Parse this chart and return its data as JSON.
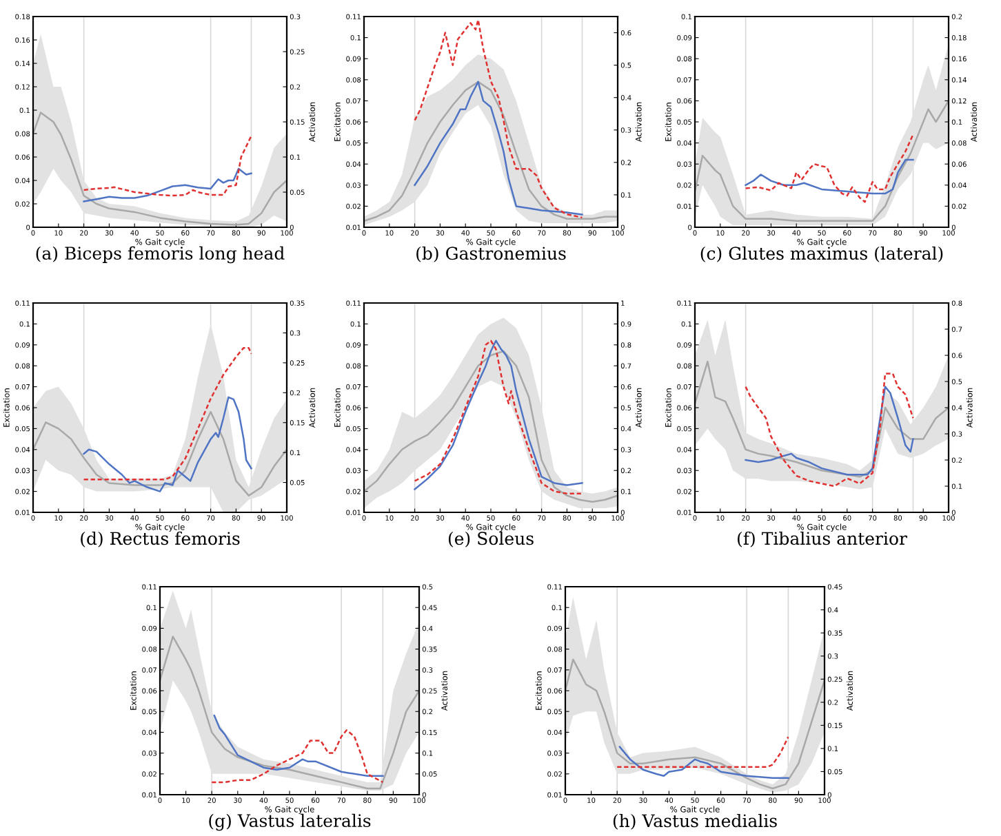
{
  "chart_data": [
    {
      "type": "line",
      "title": "(a) Biceps femoris long head",
      "xlabel": "% Gait cycle",
      "y2label": "Activation",
      "xlim": [
        0,
        100
      ],
      "xticks": [
        0,
        10,
        20,
        30,
        40,
        50,
        60,
        70,
        80,
        90,
        100
      ],
      "ylim": [
        0,
        0.18
      ],
      "yticks": [
        0,
        0.02,
        0.04,
        0.06,
        0.08,
        0.1,
        0.12,
        0.14,
        0.16,
        0.18
      ],
      "y2lim": [
        0,
        0.3
      ],
      "y2ticks": [
        0,
        0.05,
        0.1,
        0.15,
        0.2,
        0.25,
        0.3
      ],
      "ref_lines": [
        {
          "axis": "x",
          "value": 20,
          "color": "#d8d8d8",
          "line_style": "solid"
        },
        {
          "axis": "x",
          "value": 70,
          "color": "#d8d8d8",
          "line_style": "solid"
        },
        {
          "axis": "x",
          "value": 86,
          "color": "#d8d8d8",
          "line_style": "solid"
        }
      ],
      "series": [
        {
          "color": "#a8a8a8",
          "x": [
            0,
            3,
            8,
            11,
            15,
            20,
            25,
            30,
            40,
            50,
            60,
            70,
            80,
            85,
            90,
            95,
            100
          ],
          "values": [
            0.08,
            0.098,
            0.09,
            0.079,
            0.058,
            0.027,
            0.02,
            0.016,
            0.013,
            0.008,
            0.005,
            0.003,
            0.002,
            0.003,
            0.012,
            0.03,
            0.04
          ],
          "upper": [
            0.14,
            0.165,
            0.12,
            0.12,
            0.09,
            0.04,
            0.025,
            0.02,
            0.018,
            0.012,
            0.008,
            0.006,
            0.005,
            0.01,
            0.035,
            0.068,
            0.08
          ],
          "lower": [
            0.02,
            0.03,
            0.05,
            0.04,
            0.03,
            0.012,
            0.01,
            0.008,
            0.006,
            0.004,
            0.002,
            0.001,
            0,
            0,
            0.002,
            0.01,
            0.005
          ]
        },
        {
          "color": "#4f74c4",
          "x": [
            20,
            25,
            30,
            35,
            40,
            45,
            50,
            55,
            60,
            65,
            70,
            73,
            75,
            77,
            79,
            81,
            84,
            86
          ],
          "values": [
            0.022,
            0.024,
            0.026,
            0.025,
            0.025,
            0.027,
            0.031,
            0.035,
            0.036,
            0.034,
            0.033,
            0.041,
            0.038,
            0.04,
            0.04,
            0.05,
            0.045,
            0.046
          ]
        },
        {
          "color": "#e03030",
          "axis": "y2",
          "line_style": "dashed",
          "x": [
            20,
            25,
            30,
            32,
            40,
            45,
            50,
            55,
            60,
            63,
            65,
            70,
            75,
            77,
            80,
            82,
            86
          ],
          "values": [
            0.053,
            0.055,
            0.056,
            0.057,
            0.05,
            0.048,
            0.046,
            0.045,
            0.046,
            0.053,
            0.05,
            0.046,
            0.046,
            0.058,
            0.06,
            0.1,
            0.13
          ]
        }
      ]
    },
    {
      "type": "line",
      "title": "(b) Gastronemius",
      "xlabel": "% Gait cycle",
      "ylabel": "Excitation",
      "y2label": "Activation",
      "xlim": [
        0,
        100
      ],
      "xticks": [
        0,
        10,
        20,
        30,
        40,
        50,
        60,
        70,
        80,
        90,
        100
      ],
      "ylim": [
        0.01,
        0.11
      ],
      "yticks": [
        0.01,
        0.02,
        0.03,
        0.04,
        0.05,
        0.06,
        0.07,
        0.08,
        0.09,
        0.1,
        0.11
      ],
      "y2lim": [
        0,
        0.65
      ],
      "y2ticks": [
        0,
        0.1,
        0.2,
        0.3,
        0.4,
        0.5,
        0.6
      ],
      "ref_lines": [
        {
          "axis": "x",
          "value": 20,
          "color": "#d8d8d8",
          "line_style": "solid"
        },
        {
          "axis": "x",
          "value": 70,
          "color": "#d8d8d8",
          "line_style": "solid"
        },
        {
          "axis": "x",
          "value": 86,
          "color": "#d8d8d8",
          "line_style": "solid"
        }
      ],
      "series": [
        {
          "color": "#a8a8a8",
          "x": [
            0,
            5,
            10,
            15,
            20,
            25,
            30,
            35,
            40,
            45,
            50,
            55,
            60,
            65,
            70,
            75,
            80,
            85,
            90,
            95,
            100
          ],
          "values": [
            0.013,
            0.015,
            0.018,
            0.025,
            0.037,
            0.05,
            0.06,
            0.068,
            0.075,
            0.079,
            0.075,
            0.063,
            0.045,
            0.028,
            0.02,
            0.016,
            0.014,
            0.014,
            0.014,
            0.015,
            0.015
          ],
          "upper": [
            0.015,
            0.018,
            0.022,
            0.035,
            0.062,
            0.072,
            0.075,
            0.08,
            0.087,
            0.092,
            0.09,
            0.085,
            0.07,
            0.05,
            0.03,
            0.02,
            0.017,
            0.016,
            0.016,
            0.018,
            0.018
          ],
          "lower": [
            0.011,
            0.013,
            0.015,
            0.018,
            0.022,
            0.03,
            0.045,
            0.055,
            0.064,
            0.068,
            0.058,
            0.035,
            0.018,
            0.013,
            0.012,
            0.012,
            0.012,
            0.012,
            0.012,
            0.012,
            0.013
          ]
        },
        {
          "color": "#4f74c4",
          "x": [
            20,
            25,
            30,
            35,
            38,
            40,
            42,
            45,
            47,
            50,
            53,
            55,
            57,
            60,
            70,
            80,
            86
          ],
          "values": [
            0.03,
            0.039,
            0.05,
            0.059,
            0.066,
            0.066,
            0.072,
            0.079,
            0.07,
            0.067,
            0.055,
            0.046,
            0.033,
            0.02,
            0.018,
            0.017,
            0.016
          ]
        },
        {
          "color": "#e03030",
          "axis": "y2",
          "line_style": "dashed",
          "x": [
            20,
            22,
            25,
            28,
            30,
            32,
            35,
            37,
            40,
            42,
            44,
            45,
            47,
            50,
            53,
            55,
            57,
            60,
            65,
            68,
            70,
            75,
            80,
            86
          ],
          "values": [
            0.33,
            0.36,
            0.43,
            0.5,
            0.54,
            0.6,
            0.5,
            0.58,
            0.61,
            0.63,
            0.61,
            0.64,
            0.55,
            0.45,
            0.4,
            0.33,
            0.25,
            0.18,
            0.18,
            0.16,
            0.12,
            0.06,
            0.04,
            0.03
          ]
        }
      ]
    },
    {
      "type": "line",
      "title": "(c) Glutes maximus (lateral)",
      "xlabel": "% Gait cycle",
      "ylabel": "Excitation",
      "y2label": "Activation",
      "xlim": [
        0,
        100
      ],
      "xticks": [
        0,
        10,
        20,
        30,
        40,
        50,
        60,
        70,
        80,
        90,
        100
      ],
      "ylim": [
        0,
        0.1
      ],
      "yticks": [
        0,
        0.01,
        0.02,
        0.03,
        0.04,
        0.05,
        0.06,
        0.07,
        0.08,
        0.09,
        0.1
      ],
      "y2lim": [
        0,
        0.2
      ],
      "y2ticks": [
        0,
        0.02,
        0.04,
        0.06,
        0.08,
        0.1,
        0.12,
        0.14,
        0.16,
        0.18,
        0.2
      ],
      "ref_lines": [
        {
          "axis": "x",
          "value": 20,
          "color": "#d8d8d8",
          "line_style": "solid"
        },
        {
          "axis": "x",
          "value": 70,
          "color": "#d8d8d8",
          "line_style": "solid"
        },
        {
          "axis": "x",
          "value": 86,
          "color": "#d8d8d8",
          "line_style": "solid"
        }
      ],
      "series": [
        {
          "color": "#a8a8a8",
          "x": [
            0,
            3,
            8,
            10,
            15,
            20,
            30,
            40,
            50,
            60,
            70,
            75,
            80,
            85,
            90,
            92,
            95,
            100
          ],
          "values": [
            0.017,
            0.034,
            0.027,
            0.025,
            0.01,
            0.004,
            0.004,
            0.003,
            0.003,
            0.003,
            0.003,
            0.01,
            0.024,
            0.035,
            0.05,
            0.056,
            0.05,
            0.06
          ],
          "upper": [
            0.03,
            0.052,
            0.045,
            0.043,
            0.025,
            0.006,
            0.008,
            0.006,
            0.005,
            0.005,
            0.004,
            0.02,
            0.038,
            0.05,
            0.07,
            0.077,
            0.065,
            0.087
          ],
          "lower": [
            0.005,
            0.02,
            0.01,
            0.005,
            0.001,
            0.001,
            0.001,
            0.001,
            0.001,
            0.001,
            0.001,
            0.005,
            0.018,
            0.025,
            0.04,
            0.04,
            0.037,
            0.04
          ]
        },
        {
          "color": "#4f74c4",
          "x": [
            20,
            23,
            26,
            30,
            35,
            40,
            43,
            50,
            60,
            70,
            75,
            78,
            80,
            83,
            86
          ],
          "values": [
            0.02,
            0.022,
            0.025,
            0.022,
            0.02,
            0.02,
            0.021,
            0.018,
            0.017,
            0.016,
            0.016,
            0.018,
            0.026,
            0.032,
            0.032
          ]
        },
        {
          "color": "#e03030",
          "axis": "y2",
          "line_style": "dashed",
          "x": [
            20,
            25,
            30,
            33,
            38,
            40,
            42,
            45,
            47,
            50,
            52,
            55,
            58,
            60,
            62,
            65,
            67,
            70,
            72,
            75,
            77,
            80,
            83,
            86
          ],
          "values": [
            0.037,
            0.038,
            0.035,
            0.042,
            0.037,
            0.052,
            0.045,
            0.055,
            0.06,
            0.058,
            0.057,
            0.04,
            0.032,
            0.03,
            0.038,
            0.028,
            0.024,
            0.043,
            0.036,
            0.036,
            0.048,
            0.06,
            0.072,
            0.088
          ]
        }
      ]
    },
    {
      "type": "line",
      "title": "(d) Rectus femoris",
      "xlabel": "% Gait cycle",
      "ylabel": "Excitation",
      "y2label": "Activation",
      "xlim": [
        0,
        100
      ],
      "xticks": [
        0,
        10,
        20,
        30,
        40,
        50,
        60,
        70,
        80,
        90,
        100
      ],
      "ylim": [
        0.01,
        0.11
      ],
      "yticks": [
        0.01,
        0.02,
        0.03,
        0.04,
        0.05,
        0.06,
        0.07,
        0.08,
        0.09,
        0.1,
        0.11
      ],
      "y2lim": [
        0,
        0.35
      ],
      "y2ticks": [
        0.05,
        0.1,
        0.15,
        0.2,
        0.25,
        0.3,
        0.35
      ],
      "ref_lines": [
        {
          "axis": "x",
          "value": 20,
          "color": "#d8d8d8",
          "line_style": "solid"
        },
        {
          "axis": "x",
          "value": 70,
          "color": "#d8d8d8",
          "line_style": "solid"
        },
        {
          "axis": "x",
          "value": 86,
          "color": "#d8d8d8",
          "line_style": "solid"
        }
      ],
      "series": [
        {
          "color": "#a8a8a8",
          "x": [
            0,
            5,
            10,
            15,
            20,
            25,
            30,
            40,
            50,
            55,
            60,
            65,
            70,
            75,
            80,
            85,
            90,
            95,
            100
          ],
          "values": [
            0.04,
            0.053,
            0.05,
            0.045,
            0.036,
            0.028,
            0.024,
            0.023,
            0.023,
            0.024,
            0.03,
            0.045,
            0.058,
            0.045,
            0.025,
            0.018,
            0.022,
            0.032,
            0.04
          ],
          "upper": [
            0.06,
            0.068,
            0.07,
            0.062,
            0.05,
            0.035,
            0.026,
            0.026,
            0.026,
            0.028,
            0.045,
            0.075,
            0.1,
            0.075,
            0.035,
            0.022,
            0.04,
            0.055,
            0.064
          ],
          "lower": [
            0.02,
            0.035,
            0.03,
            0.028,
            0.022,
            0.02,
            0.02,
            0.02,
            0.021,
            0.022,
            0.022,
            0.022,
            0.022,
            0.01,
            0.01,
            0.016,
            0.018,
            0.022,
            0.026
          ]
        },
        {
          "color": "#4f74c4",
          "x": [
            20,
            22,
            25,
            30,
            35,
            38,
            40,
            45,
            50,
            52,
            55,
            57,
            60,
            62,
            65,
            70,
            72,
            73,
            75,
            77,
            79,
            81,
            83,
            84,
            86
          ],
          "values": [
            0.038,
            0.04,
            0.039,
            0.033,
            0.028,
            0.024,
            0.025,
            0.022,
            0.02,
            0.024,
            0.023,
            0.03,
            0.027,
            0.025,
            0.034,
            0.045,
            0.048,
            0.046,
            0.055,
            0.065,
            0.064,
            0.058,
            0.045,
            0.035,
            0.031
          ]
        },
        {
          "color": "#e03030",
          "axis": "y2",
          "line_style": "dashed",
          "x": [
            20,
            30,
            40,
            52,
            55,
            60,
            65,
            70,
            75,
            80,
            83,
            85,
            86
          ],
          "values": [
            0.055,
            0.055,
            0.055,
            0.055,
            0.06,
            0.09,
            0.14,
            0.19,
            0.23,
            0.26,
            0.275,
            0.275,
            0.265
          ]
        }
      ]
    },
    {
      "type": "line",
      "title": "(e) Soleus",
      "xlabel": "% Gait cycle",
      "ylabel": "Excitation",
      "y2label": "Activation",
      "xlim": [
        0,
        100
      ],
      "xticks": [
        0,
        10,
        20,
        30,
        40,
        50,
        60,
        70,
        80,
        90,
        100
      ],
      "ylim": [
        0.01,
        0.11
      ],
      "yticks": [
        0.01,
        0.02,
        0.03,
        0.04,
        0.05,
        0.06,
        0.07,
        0.08,
        0.09,
        0.1,
        0.11
      ],
      "y2lim": [
        0,
        1
      ],
      "y2ticks": [
        0,
        0.1,
        0.2,
        0.3,
        0.4,
        0.5,
        0.6,
        0.7,
        0.8,
        0.9,
        1
      ],
      "ref_lines": [
        {
          "axis": "x",
          "value": 20,
          "color": "#d8d8d8",
          "line_style": "solid"
        },
        {
          "axis": "x",
          "value": 70,
          "color": "#d8d8d8",
          "line_style": "solid"
        },
        {
          "axis": "x",
          "value": 86,
          "color": "#d8d8d8",
          "line_style": "solid"
        }
      ],
      "series": [
        {
          "color": "#a8a8a8",
          "x": [
            0,
            5,
            10,
            15,
            20,
            25,
            30,
            35,
            40,
            45,
            50,
            55,
            60,
            65,
            70,
            75,
            80,
            85,
            90,
            95,
            100
          ],
          "values": [
            0.02,
            0.025,
            0.033,
            0.04,
            0.044,
            0.047,
            0.053,
            0.06,
            0.07,
            0.08,
            0.085,
            0.087,
            0.08,
            0.065,
            0.035,
            0.022,
            0.018,
            0.016,
            0.015,
            0.016,
            0.018
          ],
          "upper": [
            0.025,
            0.03,
            0.04,
            0.058,
            0.055,
            0.06,
            0.066,
            0.075,
            0.085,
            0.095,
            0.1,
            0.103,
            0.098,
            0.085,
            0.06,
            0.03,
            0.022,
            0.02,
            0.019,
            0.02,
            0.022
          ],
          "lower": [
            0.012,
            0.017,
            0.02,
            0.024,
            0.03,
            0.035,
            0.04,
            0.05,
            0.06,
            0.07,
            0.073,
            0.07,
            0.055,
            0.035,
            0.02,
            0.016,
            0.014,
            0.012,
            0.012,
            0.012,
            0.013
          ]
        },
        {
          "color": "#4f74c4",
          "x": [
            20,
            25,
            30,
            35,
            40,
            45,
            48,
            50,
            52,
            54,
            56,
            58,
            60,
            65,
            70,
            75,
            80,
            86
          ],
          "values": [
            0.021,
            0.026,
            0.032,
            0.042,
            0.058,
            0.072,
            0.08,
            0.087,
            0.092,
            0.088,
            0.085,
            0.08,
            0.068,
            0.045,
            0.027,
            0.024,
            0.023,
            0.024
          ]
        },
        {
          "color": "#e03030",
          "axis": "y2",
          "line_style": "dashed",
          "x": [
            20,
            25,
            30,
            35,
            40,
            45,
            48,
            50,
            52,
            55,
            57,
            58,
            60,
            65,
            70,
            75,
            80,
            86
          ],
          "values": [
            0.15,
            0.18,
            0.23,
            0.35,
            0.5,
            0.65,
            0.8,
            0.82,
            0.78,
            0.6,
            0.52,
            0.58,
            0.48,
            0.3,
            0.14,
            0.1,
            0.09,
            0.09
          ]
        }
      ]
    },
    {
      "type": "line",
      "title": "(f) Tibalius anterior",
      "xlabel": "% Gait cycle",
      "ylabel": "Excitation",
      "y2label": "Activation",
      "xlim": [
        0,
        100
      ],
      "xticks": [
        0,
        10,
        20,
        30,
        40,
        50,
        60,
        70,
        80,
        90,
        100
      ],
      "ylim": [
        0.01,
        0.11
      ],
      "yticks": [
        0.01,
        0.02,
        0.03,
        0.04,
        0.05,
        0.06,
        0.07,
        0.08,
        0.09,
        0.1,
        0.11
      ],
      "y2lim": [
        0,
        0.8
      ],
      "y2ticks": [
        0,
        0.1,
        0.2,
        0.3,
        0.4,
        0.5,
        0.6,
        0.7,
        0.8
      ],
      "ref_lines": [
        {
          "axis": "x",
          "value": 20,
          "color": "#d8d8d8",
          "line_style": "solid"
        },
        {
          "axis": "x",
          "value": 70,
          "color": "#d8d8d8",
          "line_style": "solid"
        },
        {
          "axis": "x",
          "value": 86,
          "color": "#d8d8d8",
          "line_style": "solid"
        }
      ],
      "series": [
        {
          "color": "#a8a8a8",
          "x": [
            0,
            5,
            8,
            12,
            15,
            20,
            25,
            30,
            40,
            50,
            60,
            65,
            70,
            75,
            80,
            85,
            90,
            95,
            100
          ],
          "values": [
            0.062,
            0.082,
            0.065,
            0.063,
            0.055,
            0.04,
            0.038,
            0.037,
            0.034,
            0.03,
            0.028,
            0.027,
            0.03,
            0.06,
            0.05,
            0.045,
            0.045,
            0.055,
            0.06
          ],
          "upper": [
            0.085,
            0.102,
            0.085,
            0.102,
            0.08,
            0.048,
            0.045,
            0.043,
            0.038,
            0.036,
            0.033,
            0.03,
            0.035,
            0.068,
            0.063,
            0.052,
            0.06,
            0.07,
            0.085
          ],
          "lower": [
            0.042,
            0.05,
            0.045,
            0.04,
            0.03,
            0.026,
            0.026,
            0.025,
            0.025,
            0.024,
            0.022,
            0.021,
            0.022,
            0.05,
            0.038,
            0.036,
            0.038,
            0.042,
            0.045
          ]
        },
        {
          "color": "#4f74c4",
          "x": [
            20,
            25,
            30,
            35,
            38,
            40,
            45,
            50,
            60,
            68,
            70,
            73,
            75,
            77,
            80,
            83,
            85,
            86
          ],
          "values": [
            0.035,
            0.034,
            0.035,
            0.037,
            0.038,
            0.036,
            0.034,
            0.031,
            0.028,
            0.028,
            0.031,
            0.055,
            0.07,
            0.067,
            0.055,
            0.042,
            0.039,
            0.045
          ]
        },
        {
          "color": "#e03030",
          "axis": "y2",
          "line_style": "dashed",
          "x": [
            20,
            22,
            25,
            28,
            30,
            35,
            40,
            45,
            50,
            55,
            60,
            65,
            70,
            73,
            75,
            78,
            80,
            83,
            86
          ],
          "values": [
            0.48,
            0.44,
            0.4,
            0.36,
            0.29,
            0.2,
            0.14,
            0.12,
            0.11,
            0.1,
            0.13,
            0.11,
            0.15,
            0.33,
            0.53,
            0.53,
            0.48,
            0.45,
            0.36
          ]
        }
      ]
    },
    {
      "type": "line",
      "title": "(g) Vastus lateralis",
      "xlabel": "% Gait cycle",
      "ylabel": "Excitation",
      "y2label": "Activation",
      "xlim": [
        0,
        100
      ],
      "xticks": [
        0,
        10,
        20,
        30,
        40,
        50,
        60,
        70,
        80,
        90,
        100
      ],
      "ylim": [
        0.01,
        0.11
      ],
      "yticks": [
        0.01,
        0.02,
        0.03,
        0.04,
        0.05,
        0.06,
        0.07,
        0.08,
        0.09,
        0.1,
        0.11
      ],
      "y2lim": [
        0,
        0.5
      ],
      "y2ticks": [
        0,
        0.05,
        0.1,
        0.15,
        0.2,
        0.25,
        0.3,
        0.35,
        0.4,
        0.45,
        0.5
      ],
      "ref_lines": [
        {
          "axis": "x",
          "value": 20,
          "color": "#d8d8d8",
          "line_style": "solid"
        },
        {
          "axis": "x",
          "value": 70,
          "color": "#d8d8d8",
          "line_style": "solid"
        },
        {
          "axis": "x",
          "value": 86,
          "color": "#d8d8d8",
          "line_style": "solid"
        }
      ],
      "series": [
        {
          "color": "#a8a8a8",
          "x": [
            0,
            5,
            10,
            12,
            15,
            20,
            25,
            30,
            40,
            50,
            60,
            70,
            80,
            85,
            90,
            95,
            100
          ],
          "values": [
            0.065,
            0.086,
            0.075,
            0.07,
            0.06,
            0.04,
            0.032,
            0.028,
            0.024,
            0.022,
            0.019,
            0.016,
            0.013,
            0.013,
            0.03,
            0.05,
            0.06
          ],
          "upper": [
            0.09,
            0.108,
            0.09,
            0.099,
            0.08,
            0.05,
            0.04,
            0.033,
            0.027,
            0.025,
            0.022,
            0.019,
            0.016,
            0.016,
            0.06,
            0.078,
            0.093
          ],
          "lower": [
            0.04,
            0.065,
            0.055,
            0.05,
            0.04,
            0.02,
            0.02,
            0.02,
            0.02,
            0.018,
            0.016,
            0.014,
            0.012,
            0.012,
            0.015,
            0.03,
            0.04
          ]
        },
        {
          "color": "#4f74c4",
          "x": [
            21,
            23,
            25,
            30,
            35,
            40,
            45,
            50,
            55,
            57,
            60,
            70,
            80,
            86
          ],
          "values": [
            0.048,
            0.042,
            0.039,
            0.029,
            0.026,
            0.023,
            0.022,
            0.023,
            0.027,
            0.026,
            0.026,
            0.021,
            0.019,
            0.019
          ]
        },
        {
          "color": "#e03030",
          "axis": "y2",
          "line_style": "dashed",
          "x": [
            20,
            25,
            30,
            35,
            40,
            45,
            50,
            55,
            58,
            62,
            65,
            67,
            70,
            72,
            75,
            78,
            80,
            86
          ],
          "values": [
            0.03,
            0.03,
            0.035,
            0.035,
            0.05,
            0.07,
            0.085,
            0.1,
            0.13,
            0.13,
            0.1,
            0.1,
            0.14,
            0.155,
            0.14,
            0.09,
            0.05,
            0.03
          ]
        }
      ]
    },
    {
      "type": "line",
      "title": "(h) Vastus medialis",
      "xlabel": "% Gait cycle",
      "ylabel": "Excitation",
      "y2label": "Activation",
      "xlim": [
        0,
        100
      ],
      "xticks": [
        0,
        10,
        20,
        30,
        40,
        50,
        60,
        70,
        80,
        90,
        100
      ],
      "ylim": [
        0.01,
        0.11
      ],
      "yticks": [
        0.01,
        0.02,
        0.03,
        0.04,
        0.05,
        0.06,
        0.07,
        0.08,
        0.09,
        0.1,
        0.11
      ],
      "y2lim": [
        0,
        0.45
      ],
      "y2ticks": [
        0,
        0.05,
        0.1,
        0.15,
        0.2,
        0.25,
        0.3,
        0.35,
        0.4,
        0.45
      ],
      "ref_lines": [
        {
          "axis": "x",
          "value": 20,
          "color": "#d8d8d8",
          "line_style": "solid"
        },
        {
          "axis": "x",
          "value": 70,
          "color": "#d8d8d8",
          "line_style": "solid"
        },
        {
          "axis": "x",
          "value": 86,
          "color": "#d8d8d8",
          "line_style": "solid"
        }
      ],
      "series": [
        {
          "color": "#a8a8a8",
          "x": [
            0,
            3,
            8,
            12,
            15,
            20,
            25,
            30,
            40,
            50,
            60,
            70,
            75,
            80,
            85,
            90,
            95,
            100
          ],
          "values": [
            0.06,
            0.075,
            0.063,
            0.06,
            0.05,
            0.03,
            0.025,
            0.025,
            0.027,
            0.028,
            0.025,
            0.018,
            0.015,
            0.013,
            0.015,
            0.025,
            0.045,
            0.065
          ],
          "upper": [
            0.085,
            0.105,
            0.075,
            0.094,
            0.07,
            0.04,
            0.028,
            0.03,
            0.031,
            0.033,
            0.028,
            0.02,
            0.017,
            0.015,
            0.02,
            0.04,
            0.065,
            0.09
          ],
          "lower": [
            0.035,
            0.048,
            0.05,
            0.05,
            0.035,
            0.02,
            0.02,
            0.022,
            0.022,
            0.023,
            0.02,
            0.015,
            0.013,
            0.011,
            0.012,
            0.015,
            0.025,
            0.04
          ]
        },
        {
          "color": "#4f74c4",
          "x": [
            21,
            25,
            30,
            35,
            38,
            40,
            45,
            48,
            50,
            52,
            55,
            60,
            70,
            80,
            86
          ],
          "values": [
            0.033,
            0.027,
            0.022,
            0.02,
            0.019,
            0.021,
            0.022,
            0.025,
            0.027,
            0.026,
            0.025,
            0.021,
            0.019,
            0.018,
            0.018
          ]
        },
        {
          "color": "#e03030",
          "axis": "y2",
          "line_style": "dashed",
          "x": [
            20,
            30,
            40,
            50,
            60,
            70,
            78,
            80,
            83,
            86
          ],
          "values": [
            0.06,
            0.06,
            0.06,
            0.06,
            0.06,
            0.06,
            0.06,
            0.065,
            0.09,
            0.125
          ]
        }
      ]
    }
  ]
}
